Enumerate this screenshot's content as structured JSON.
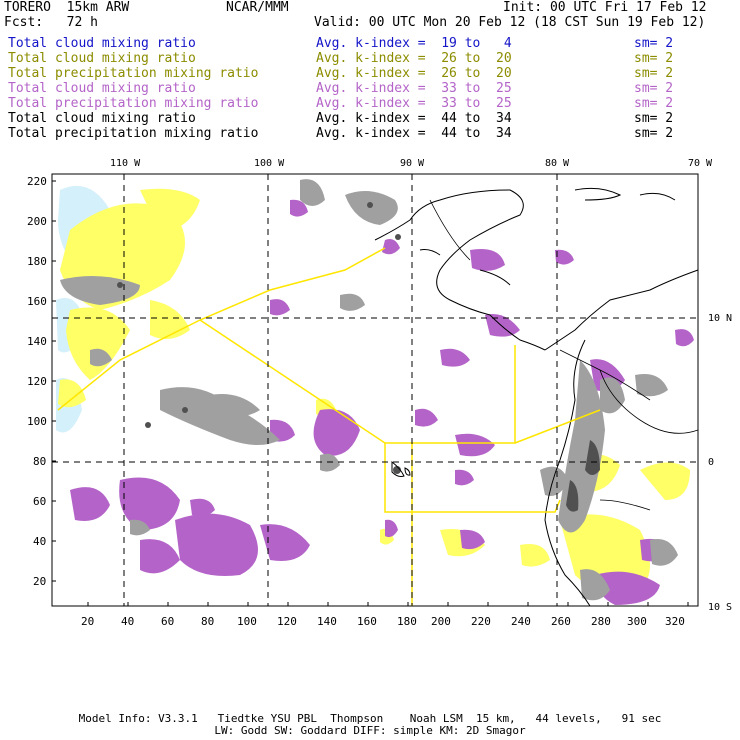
{
  "header": {
    "model": "TORERO  15km ARW",
    "center": "NCAR/MMM",
    "init": "Init: 00 UTC Fri 17 Feb 12",
    "fcst": "Fcst:   72 h",
    "valid": "Valid: 00 UTC Mon 20 Feb 12 (18 CST Sun 19 Feb 12)"
  },
  "legend": [
    {
      "field": "Total cloud mixing ratio",
      "kindex": "Avg. k-index =  19 to   4",
      "sm": "sm= 2",
      "color": "#1414c8"
    },
    {
      "field": "Total cloud mixing ratio",
      "kindex": "Avg. k-index =  26 to  20",
      "sm": "sm= 2",
      "color": "#8c8c00"
    },
    {
      "field": "Total precipitation mixing ratio",
      "kindex": "Avg. k-index =  26 to  20",
      "sm": "sm= 2",
      "color": "#8c8c00"
    },
    {
      "field": "Total cloud mixing ratio",
      "kindex": "Avg. k-index =  33 to  25",
      "sm": "sm= 2",
      "color": "#b464c8"
    },
    {
      "field": "Total precipitation mixing ratio",
      "kindex": "Avg. k-index =  33 to  25",
      "sm": "sm= 2",
      "color": "#b464c8"
    },
    {
      "field": "Total cloud mixing ratio",
      "kindex": "Avg. k-index =  44 to  34",
      "sm": "sm= 2",
      "color": "#000000"
    },
    {
      "field": "Total precipitation mixing ratio",
      "kindex": "Avg. k-index =  44 to  34",
      "sm": "sm= 2",
      "color": "#000000"
    }
  ],
  "map": {
    "lon_labels": [
      "110 W",
      "100 W",
      "90 W",
      "80 W",
      "70 W"
    ],
    "lat_labels": [
      "10 N",
      "0",
      "10 S"
    ],
    "y_ticks": [
      "220",
      "200",
      "180",
      "160",
      "140",
      "120",
      "100",
      "80",
      "60",
      "40",
      "20"
    ],
    "x_ticks": [
      "20",
      "40",
      "60",
      "80",
      "100",
      "120",
      "140",
      "160",
      "180",
      "200",
      "220",
      "240",
      "260",
      "280",
      "300",
      "320"
    ],
    "colors": {
      "cloud_light": "#d4f0fa",
      "yellow": "#ffff66",
      "purple": "#b464c8",
      "gray": "#a0a0a0",
      "dark": "#505050",
      "route": "#ffe600"
    }
  },
  "footer": {
    "line1": "Model Info: V3.3.1   Tiedtke YSU PBL  Thompson    Noah LSM  15 km,   44 levels,   91 sec",
    "line2": "LW: Godd SW: Goddard DIFF: simple KM: 2D Smagor"
  }
}
